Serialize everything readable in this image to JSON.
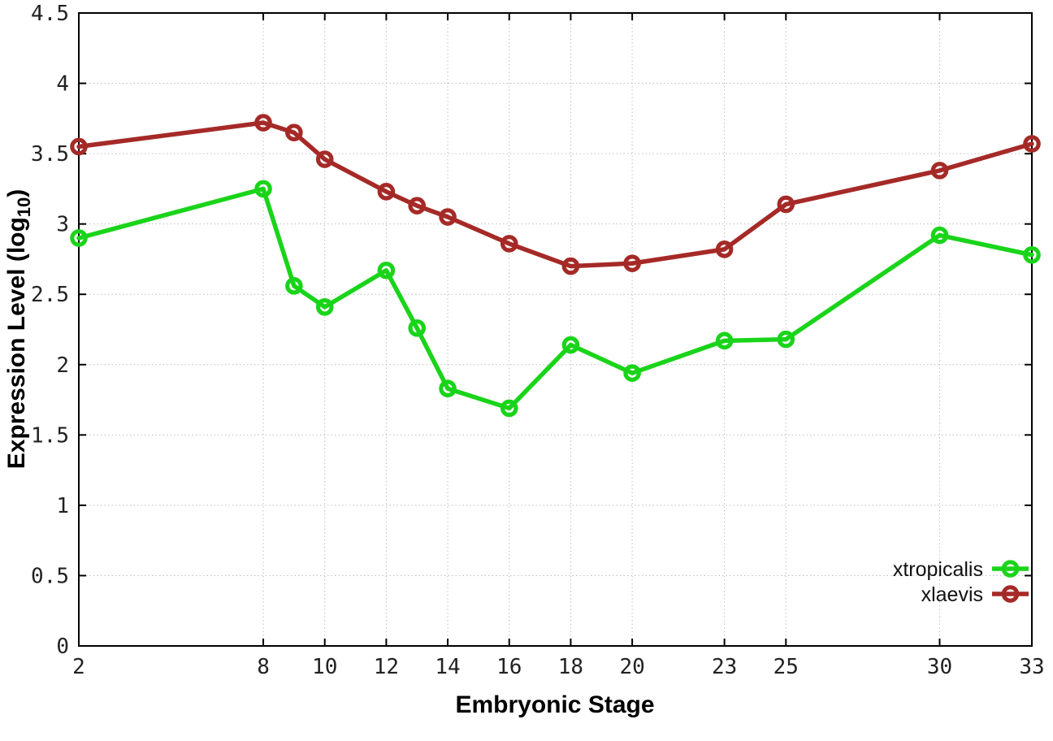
{
  "chart_data": {
    "type": "line",
    "title": "",
    "xlabel": "Embryonic Stage",
    "ylabel": "Expression Level (log10)",
    "ylabel_parts": {
      "main": "Expression Level (log",
      "sub": "10",
      "end": ")"
    },
    "xlim": [
      2,
      33
    ],
    "ylim": [
      0,
      4.5
    ],
    "grid": true,
    "legend_position": "inside-right",
    "x_ticks": [
      2,
      8,
      10,
      12,
      14,
      16,
      18,
      20,
      23,
      25,
      30,
      33
    ],
    "x_tick_labels": [
      "2",
      "8",
      "10",
      "12",
      "14",
      "16",
      "18",
      "20",
      "23",
      "25",
      "30",
      "33"
    ],
    "y_ticks": [
      0,
      0.5,
      1,
      1.5,
      2,
      2.5,
      3,
      3.5,
      4,
      4.5
    ],
    "y_tick_labels": [
      "0",
      "0.5",
      "1",
      "1.5",
      "2",
      "2.5",
      "3",
      "3.5",
      "4",
      "4.5"
    ],
    "stages": [
      2,
      8,
      9,
      10,
      12,
      13,
      14,
      16,
      18,
      20,
      23,
      25,
      30,
      33
    ],
    "series": [
      {
        "name": "xtropicalis",
        "color": "#1ad41a",
        "marker": "open-circle",
        "values": [
          2.9,
          3.25,
          2.56,
          2.41,
          2.67,
          2.26,
          1.83,
          1.69,
          2.14,
          1.94,
          2.17,
          2.18,
          2.92,
          2.78
        ]
      },
      {
        "name": "xlaevis",
        "color": "#a52a27",
        "marker": "open-circle",
        "values": [
          3.55,
          3.72,
          3.65,
          3.46,
          3.23,
          3.13,
          3.05,
          2.86,
          2.7,
          2.72,
          2.82,
          3.14,
          3.38,
          3.57
        ]
      }
    ],
    "colors": {
      "background": "#ffffff",
      "border": "#000000",
      "grid": "#bfbfbf",
      "tick_text": "#222222"
    }
  }
}
